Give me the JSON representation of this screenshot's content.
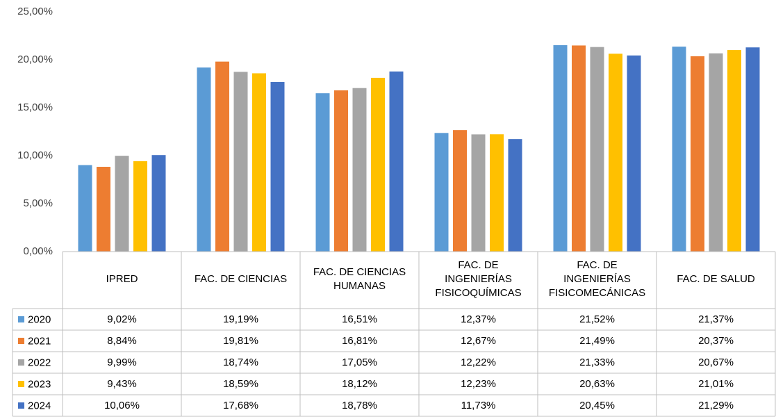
{
  "chart_data": {
    "type": "bar",
    "categories": [
      "IPRED",
      "FAC. DE CIENCIAS",
      "FAC. DE CIENCIAS HUMANAS",
      "FAC. DE INGENIERÍAS FISICOQUÍMICAS",
      "FAC. DE INGENIERÍAS FISICOMECÁNICAS",
      "FAC. DE SALUD"
    ],
    "series": [
      {
        "name": "2020",
        "color": "#5b9bd5",
        "values": [
          9.02,
          19.19,
          16.51,
          12.37,
          21.52,
          21.37
        ],
        "value_labels": [
          "9,02%",
          "19,19%",
          "16,51%",
          "12,37%",
          "21,52%",
          "21,37%"
        ]
      },
      {
        "name": "2021",
        "color": "#ed7d31",
        "values": [
          8.84,
          19.81,
          16.81,
          12.67,
          21.49,
          20.37
        ],
        "value_labels": [
          "8,84%",
          "19,81%",
          "16,81%",
          "12,67%",
          "21,49%",
          "20,37%"
        ]
      },
      {
        "name": "2022",
        "color": "#a5a5a5",
        "values": [
          9.99,
          18.74,
          17.05,
          12.22,
          21.33,
          20.67
        ],
        "value_labels": [
          "9,99%",
          "18,74%",
          "17,05%",
          "12,22%",
          "21,33%",
          "20,67%"
        ]
      },
      {
        "name": "2023",
        "color": "#ffc000",
        "values": [
          9.43,
          18.59,
          18.12,
          12.23,
          20.63,
          21.01
        ],
        "value_labels": [
          "9,43%",
          "18,59%",
          "18,12%",
          "12,23%",
          "20,63%",
          "21,01%"
        ]
      },
      {
        "name": "2024",
        "color": "#4472c4",
        "values": [
          10.06,
          17.68,
          18.78,
          11.73,
          20.45,
          21.29
        ],
        "value_labels": [
          "10,06%",
          "17,68%",
          "18,78%",
          "11,73%",
          "20,45%",
          "21,29%"
        ]
      }
    ],
    "ylim": [
      0,
      25
    ],
    "yticks": [
      {
        "value": 0,
        "label": "0,00%"
      },
      {
        "value": 5,
        "label": "5,00%"
      },
      {
        "value": 10,
        "label": "10,00%"
      },
      {
        "value": 15,
        "label": "15,00%"
      },
      {
        "value": 20,
        "label": "20,00%"
      },
      {
        "value": 25,
        "label": "25,00%"
      }
    ],
    "grid": false
  }
}
